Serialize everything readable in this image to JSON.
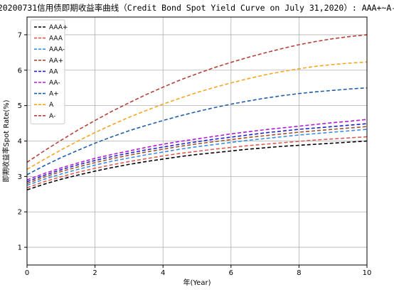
{
  "chart_data": {
    "type": "line",
    "title": "20200731信用债即期收益率曲线（Credit Bond Spot Yield Curve on July 31,2020）: AAA+~A-",
    "xlabel": "年(Year)",
    "ylabel": "即期收益率Spot Rate(%)",
    "xlim": [
      0,
      10
    ],
    "ylim": [
      0.5,
      7.5
    ],
    "xticks": [
      0,
      2,
      4,
      6,
      8,
      10
    ],
    "yticks": [
      1,
      2,
      3,
      4,
      5,
      6,
      7
    ],
    "grid": true,
    "legend_position": "top-left",
    "x": [
      0,
      0.5,
      1,
      1.5,
      2,
      2.5,
      3,
      3.5,
      4,
      4.5,
      5,
      5.5,
      6,
      6.5,
      7,
      7.5,
      8,
      8.5,
      9,
      9.5,
      10
    ],
    "series": [
      {
        "name": "AAA+",
        "color": "#000000",
        "values": [
          2.62,
          2.78,
          2.92,
          3.04,
          3.15,
          3.25,
          3.34,
          3.42,
          3.49,
          3.56,
          3.62,
          3.67,
          3.72,
          3.77,
          3.81,
          3.85,
          3.88,
          3.91,
          3.94,
          3.97,
          4.0
        ]
      },
      {
        "name": "AAA",
        "color": "#e05a4e",
        "values": [
          2.68,
          2.85,
          2.99,
          3.12,
          3.23,
          3.33,
          3.42,
          3.5,
          3.58,
          3.65,
          3.71,
          3.77,
          3.82,
          3.87,
          3.91,
          3.95,
          3.99,
          4.03,
          4.06,
          4.09,
          4.12
        ]
      },
      {
        "name": "AAA-",
        "color": "#3a8ee6",
        "values": [
          2.75,
          2.92,
          3.07,
          3.2,
          3.32,
          3.43,
          3.52,
          3.61,
          3.69,
          3.77,
          3.84,
          3.9,
          3.96,
          4.02,
          4.07,
          4.12,
          4.17,
          4.21,
          4.25,
          4.29,
          4.33
        ]
      },
      {
        "name": "AA+",
        "color": "#a0522d",
        "values": [
          2.8,
          2.98,
          3.14,
          3.27,
          3.39,
          3.5,
          3.6,
          3.69,
          3.77,
          3.85,
          3.92,
          3.98,
          4.04,
          4.1,
          4.15,
          4.2,
          4.25,
          4.29,
          4.33,
          4.37,
          4.41
        ]
      },
      {
        "name": "AA",
        "color": "#2222cc",
        "values": [
          2.85,
          3.03,
          3.19,
          3.33,
          3.45,
          3.56,
          3.66,
          3.75,
          3.83,
          3.91,
          3.98,
          4.05,
          4.11,
          4.17,
          4.23,
          4.28,
          4.33,
          4.37,
          4.41,
          4.45,
          4.49
        ]
      },
      {
        "name": "AA-",
        "color": "#b31bd6",
        "values": [
          2.9,
          3.08,
          3.24,
          3.38,
          3.51,
          3.62,
          3.72,
          3.82,
          3.91,
          3.99,
          4.06,
          4.13,
          4.2,
          4.26,
          4.32,
          4.37,
          4.42,
          4.47,
          4.52,
          4.56,
          4.61
        ]
      },
      {
        "name": "A+",
        "color": "#1f5fa8",
        "values": [
          3.05,
          3.3,
          3.53,
          3.74,
          3.94,
          4.12,
          4.29,
          4.44,
          4.58,
          4.71,
          4.83,
          4.94,
          5.04,
          5.13,
          5.21,
          5.28,
          5.34,
          5.39,
          5.43,
          5.47,
          5.5
        ]
      },
      {
        "name": "A",
        "color": "#f5a623",
        "values": [
          3.2,
          3.48,
          3.75,
          4.0,
          4.24,
          4.46,
          4.67,
          4.86,
          5.04,
          5.21,
          5.37,
          5.51,
          5.64,
          5.76,
          5.87,
          5.96,
          6.04,
          6.11,
          6.16,
          6.2,
          6.23
        ]
      },
      {
        "name": "A-",
        "color": "#b5403a",
        "values": [
          3.4,
          3.72,
          4.02,
          4.31,
          4.58,
          4.84,
          5.08,
          5.31,
          5.52,
          5.72,
          5.9,
          6.07,
          6.22,
          6.36,
          6.49,
          6.61,
          6.72,
          6.81,
          6.89,
          6.95,
          7.0
        ]
      }
    ]
  }
}
